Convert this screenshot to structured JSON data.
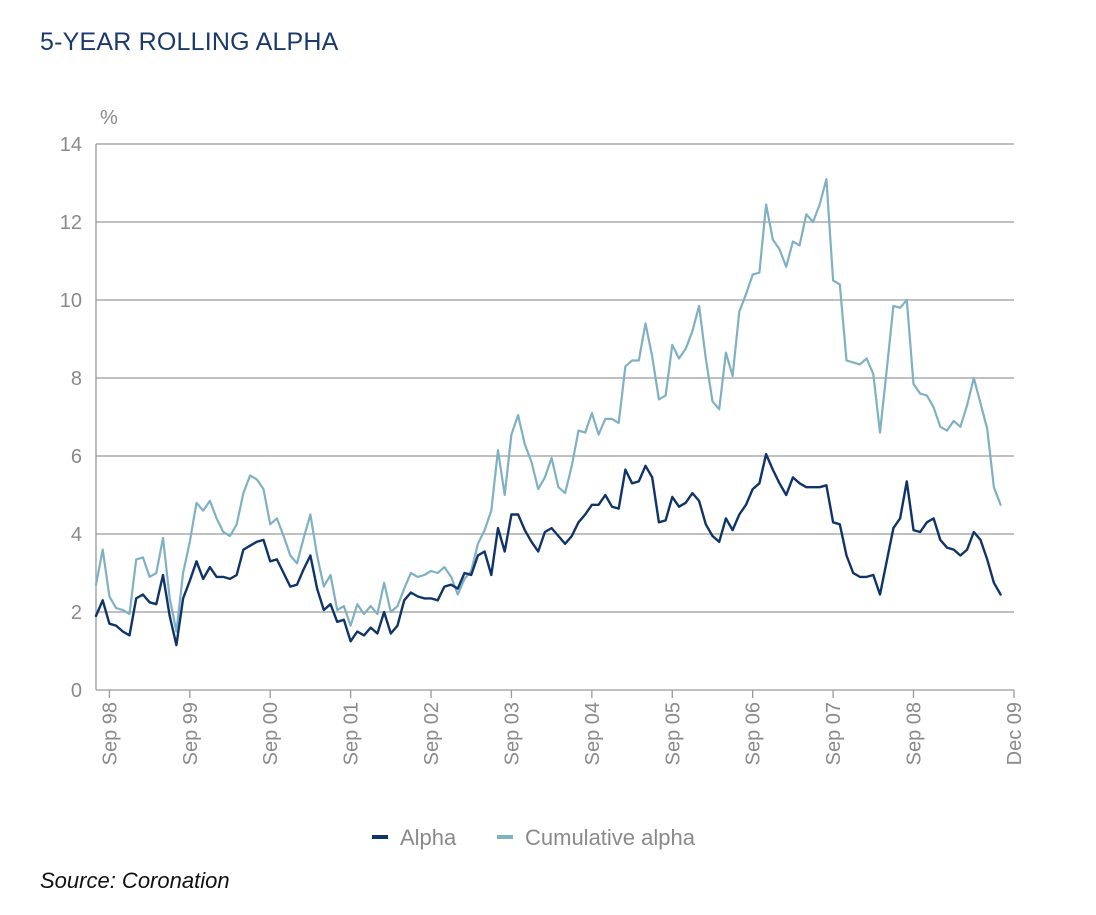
{
  "chart_data": {
    "type": "line",
    "title": "5-YEAR ROLLING ALPHA",
    "ylabel": "%",
    "xlabel": "",
    "ylim": [
      0,
      14
    ],
    "yticks": [
      0,
      2,
      4,
      6,
      8,
      10,
      12,
      14
    ],
    "grid": true,
    "legend": "bottom",
    "x_range": [
      "Jul 98",
      "Dec 09"
    ],
    "x_tick_labels": [
      "Sep 98",
      "Sep 99",
      "Sep 00",
      "Sep 01",
      "Sep 02",
      "Sep 03",
      "Sep 04",
      "Sep 05",
      "Sep 06",
      "Sep 07",
      "Sep 08",
      "Dec 09"
    ],
    "x_tick_months": [
      2,
      14,
      26,
      38,
      50,
      62,
      74,
      86,
      98,
      110,
      122,
      137
    ],
    "source": "Source: Coronation",
    "series": [
      {
        "name": "Alpha",
        "color": "#0f3468",
        "points": [
          [
            0,
            1.9
          ],
          [
            1,
            2.3
          ],
          [
            2,
            1.7
          ],
          [
            3,
            1.65
          ],
          [
            4,
            1.5
          ],
          [
            5,
            1.4
          ],
          [
            6,
            2.35
          ],
          [
            7,
            2.45
          ],
          [
            8,
            2.25
          ],
          [
            9,
            2.2
          ],
          [
            10,
            2.95
          ],
          [
            11,
            1.9
          ],
          [
            12,
            1.15
          ],
          [
            13,
            2.35
          ],
          [
            14,
            2.8
          ],
          [
            15,
            3.3
          ],
          [
            16,
            2.85
          ],
          [
            17,
            3.15
          ],
          [
            18,
            2.9
          ],
          [
            19,
            2.9
          ],
          [
            20,
            2.85
          ],
          [
            21,
            2.95
          ],
          [
            22,
            3.6
          ],
          [
            23,
            3.7
          ],
          [
            24,
            3.8
          ],
          [
            25,
            3.85
          ],
          [
            26,
            3.3
          ],
          [
            27,
            3.35
          ],
          [
            28,
            3.0
          ],
          [
            29,
            2.65
          ],
          [
            30,
            2.7
          ],
          [
            31,
            3.1
          ],
          [
            32,
            3.45
          ],
          [
            33,
            2.6
          ],
          [
            34,
            2.05
          ],
          [
            35,
            2.2
          ],
          [
            36,
            1.75
          ],
          [
            37,
            1.8
          ],
          [
            38,
            1.25
          ],
          [
            39,
            1.5
          ],
          [
            40,
            1.4
          ],
          [
            41,
            1.6
          ],
          [
            42,
            1.45
          ],
          [
            43,
            2.0
          ],
          [
            44,
            1.45
          ],
          [
            45,
            1.65
          ],
          [
            46,
            2.3
          ],
          [
            47,
            2.5
          ],
          [
            48,
            2.4
          ],
          [
            49,
            2.35
          ],
          [
            50,
            2.35
          ],
          [
            51,
            2.3
          ],
          [
            52,
            2.65
          ],
          [
            53,
            2.7
          ],
          [
            54,
            2.6
          ],
          [
            55,
            3.0
          ],
          [
            56,
            2.95
          ],
          [
            57,
            3.45
          ],
          [
            58,
            3.55
          ],
          [
            59,
            2.95
          ],
          [
            60,
            4.15
          ],
          [
            61,
            3.55
          ],
          [
            62,
            4.5
          ],
          [
            63,
            4.5
          ],
          [
            64,
            4.1
          ],
          [
            65,
            3.8
          ],
          [
            66,
            3.55
          ],
          [
            67,
            4.05
          ],
          [
            68,
            4.15
          ],
          [
            69,
            3.95
          ],
          [
            70,
            3.75
          ],
          [
            71,
            3.95
          ],
          [
            72,
            4.3
          ],
          [
            73,
            4.5
          ],
          [
            74,
            4.75
          ],
          [
            75,
            4.75
          ],
          [
            76,
            5.0
          ],
          [
            77,
            4.7
          ],
          [
            78,
            4.65
          ],
          [
            79,
            5.65
          ],
          [
            80,
            5.3
          ],
          [
            81,
            5.35
          ],
          [
            82,
            5.75
          ],
          [
            83,
            5.45
          ],
          [
            84,
            4.3
          ],
          [
            85,
            4.35
          ],
          [
            86,
            4.95
          ],
          [
            87,
            4.7
          ],
          [
            88,
            4.8
          ],
          [
            89,
            5.05
          ],
          [
            90,
            4.85
          ],
          [
            91,
            4.25
          ],
          [
            92,
            3.95
          ],
          [
            93,
            3.8
          ],
          [
            94,
            4.4
          ],
          [
            95,
            4.1
          ],
          [
            96,
            4.5
          ],
          [
            97,
            4.75
          ],
          [
            98,
            5.15
          ],
          [
            99,
            5.3
          ],
          [
            100,
            6.05
          ],
          [
            101,
            5.65
          ],
          [
            102,
            5.3
          ],
          [
            103,
            5.0
          ],
          [
            104,
            5.45
          ],
          [
            105,
            5.3
          ],
          [
            106,
            5.2
          ],
          [
            107,
            5.2
          ],
          [
            108,
            5.2
          ],
          [
            109,
            5.25
          ],
          [
            110,
            4.3
          ],
          [
            111,
            4.25
          ],
          [
            112,
            3.45
          ],
          [
            113,
            3.0
          ],
          [
            114,
            2.9
          ],
          [
            115,
            2.9
          ],
          [
            116,
            2.95
          ],
          [
            117,
            2.45
          ],
          [
            118,
            3.3
          ],
          [
            119,
            4.15
          ],
          [
            120,
            4.4
          ],
          [
            121,
            5.35
          ],
          [
            122,
            4.1
          ],
          [
            123,
            4.05
          ],
          [
            124,
            4.3
          ],
          [
            125,
            4.4
          ],
          [
            126,
            3.85
          ],
          [
            127,
            3.65
          ],
          [
            128,
            3.6
          ],
          [
            129,
            3.45
          ],
          [
            130,
            3.6
          ],
          [
            131,
            4.05
          ],
          [
            132,
            3.85
          ],
          [
            133,
            3.35
          ],
          [
            134,
            2.75
          ],
          [
            135,
            2.45
          ]
        ]
      },
      {
        "name": "Cumulative alpha",
        "color": "#7fb1c2",
        "points": [
          [
            0,
            2.7
          ],
          [
            1,
            3.6
          ],
          [
            2,
            2.4
          ],
          [
            3,
            2.1
          ],
          [
            4,
            2.05
          ],
          [
            5,
            1.95
          ],
          [
            6,
            3.35
          ],
          [
            7,
            3.4
          ],
          [
            8,
            2.9
          ],
          [
            9,
            3.0
          ],
          [
            10,
            3.9
          ],
          [
            11,
            2.35
          ],
          [
            12,
            1.5
          ],
          [
            13,
            3.0
          ],
          [
            14,
            3.8
          ],
          [
            15,
            4.8
          ],
          [
            16,
            4.6
          ],
          [
            17,
            4.85
          ],
          [
            18,
            4.4
          ],
          [
            19,
            4.05
          ],
          [
            20,
            3.95
          ],
          [
            21,
            4.25
          ],
          [
            22,
            5.05
          ],
          [
            23,
            5.5
          ],
          [
            24,
            5.4
          ],
          [
            25,
            5.15
          ],
          [
            26,
            4.25
          ],
          [
            27,
            4.4
          ],
          [
            28,
            3.95
          ],
          [
            29,
            3.45
          ],
          [
            30,
            3.25
          ],
          [
            31,
            3.9
          ],
          [
            32,
            4.5
          ],
          [
            33,
            3.45
          ],
          [
            34,
            2.65
          ],
          [
            35,
            2.95
          ],
          [
            36,
            2.05
          ],
          [
            37,
            2.15
          ],
          [
            38,
            1.65
          ],
          [
            39,
            2.2
          ],
          [
            40,
            1.95
          ],
          [
            41,
            2.15
          ],
          [
            42,
            1.95
          ],
          [
            43,
            2.75
          ],
          [
            44,
            2.0
          ],
          [
            45,
            2.15
          ],
          [
            46,
            2.6
          ],
          [
            47,
            3.0
          ],
          [
            48,
            2.9
          ],
          [
            49,
            2.95
          ],
          [
            50,
            3.05
          ],
          [
            51,
            3.0
          ],
          [
            52,
            3.15
          ],
          [
            53,
            2.9
          ],
          [
            54,
            2.45
          ],
          [
            55,
            2.85
          ],
          [
            56,
            3.05
          ],
          [
            57,
            3.75
          ],
          [
            58,
            4.1
          ],
          [
            59,
            4.6
          ],
          [
            60,
            6.15
          ],
          [
            61,
            5.0
          ],
          [
            62,
            6.55
          ],
          [
            63,
            7.05
          ],
          [
            64,
            6.3
          ],
          [
            65,
            5.85
          ],
          [
            66,
            5.15
          ],
          [
            67,
            5.45
          ],
          [
            68,
            5.95
          ],
          [
            69,
            5.2
          ],
          [
            70,
            5.05
          ],
          [
            71,
            5.75
          ],
          [
            72,
            6.65
          ],
          [
            73,
            6.6
          ],
          [
            74,
            7.1
          ],
          [
            75,
            6.55
          ],
          [
            76,
            6.95
          ],
          [
            77,
            6.95
          ],
          [
            78,
            6.85
          ],
          [
            79,
            8.3
          ],
          [
            80,
            8.45
          ],
          [
            81,
            8.45
          ],
          [
            82,
            9.4
          ],
          [
            83,
            8.55
          ],
          [
            84,
            7.45
          ],
          [
            85,
            7.55
          ],
          [
            86,
            8.85
          ],
          [
            87,
            8.5
          ],
          [
            88,
            8.75
          ],
          [
            89,
            9.2
          ],
          [
            90,
            9.85
          ],
          [
            91,
            8.5
          ],
          [
            92,
            7.4
          ],
          [
            93,
            7.2
          ],
          [
            94,
            8.65
          ],
          [
            95,
            8.05
          ],
          [
            96,
            9.7
          ],
          [
            97,
            10.15
          ],
          [
            98,
            10.65
          ],
          [
            99,
            10.7
          ],
          [
            100,
            12.45
          ],
          [
            101,
            11.55
          ],
          [
            102,
            11.3
          ],
          [
            103,
            10.85
          ],
          [
            104,
            11.5
          ],
          [
            105,
            11.4
          ],
          [
            106,
            12.2
          ],
          [
            107,
            12.0
          ],
          [
            108,
            12.45
          ],
          [
            109,
            13.1
          ],
          [
            110,
            10.5
          ],
          [
            111,
            10.4
          ],
          [
            112,
            8.45
          ],
          [
            113,
            8.4
          ],
          [
            114,
            8.35
          ],
          [
            115,
            8.5
          ],
          [
            116,
            8.1
          ],
          [
            117,
            6.6
          ],
          [
            118,
            8.2
          ],
          [
            119,
            9.85
          ],
          [
            120,
            9.8
          ],
          [
            121,
            10.0
          ],
          [
            122,
            7.85
          ],
          [
            123,
            7.6
          ],
          [
            124,
            7.55
          ],
          [
            125,
            7.25
          ],
          [
            126,
            6.75
          ],
          [
            127,
            6.65
          ],
          [
            128,
            6.9
          ],
          [
            129,
            6.75
          ],
          [
            130,
            7.3
          ],
          [
            131,
            8.0
          ],
          [
            132,
            7.35
          ],
          [
            133,
            6.7
          ],
          [
            134,
            5.2
          ],
          [
            135,
            4.75
          ]
        ]
      }
    ]
  }
}
